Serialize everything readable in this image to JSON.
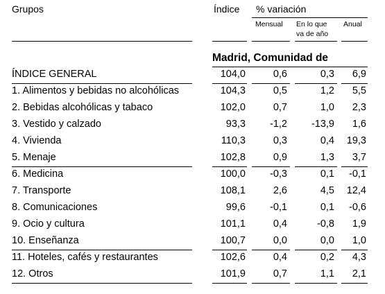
{
  "header": {
    "groups_label": "Grupos",
    "index_label": "Índice",
    "variation_label": "% variación",
    "monthly_label": "Mensual",
    "ytd_label_line1": "En lo que",
    "ytd_label_line2": "va de año",
    "annual_label": "Anual"
  },
  "region": "Madrid, Comunidad de",
  "rows": [
    {
      "label": "ÍNDICE GENERAL",
      "index": "104,0",
      "monthly": "0,6",
      "ytd": "0,3",
      "annual": "6,9"
    },
    {
      "label": "1. Alimentos y bebidas no alcohólicas",
      "index": "104,3",
      "monthly": "0,5",
      "ytd": "1,2",
      "annual": "5,5"
    },
    {
      "label": "2. Bebidas alcohólicas y tabaco",
      "index": "102,0",
      "monthly": "0,7",
      "ytd": "1,0",
      "annual": "2,3"
    },
    {
      "label": "3. Vestido y calzado",
      "index": "93,3",
      "monthly": "-1,2",
      "ytd": "-13,9",
      "annual": "1,6"
    },
    {
      "label": "4. Vivienda",
      "index": "110,3",
      "monthly": "0,3",
      "ytd": "0,4",
      "annual": "19,3"
    },
    {
      "label": "5. Menaje",
      "index": "102,8",
      "monthly": "0,9",
      "ytd": "1,3",
      "annual": "3,7"
    },
    {
      "label": "6. Medicina",
      "index": "100,0",
      "monthly": "-0,3",
      "ytd": "0,1",
      "annual": "-0,1"
    },
    {
      "label": "7. Transporte",
      "index": "108,1",
      "monthly": "2,6",
      "ytd": "4,5",
      "annual": "12,4"
    },
    {
      "label": "8. Comunicaciones",
      "index": "99,6",
      "monthly": "-0,1",
      "ytd": "0,1",
      "annual": "-0,6"
    },
    {
      "label": "9. Ocio y cultura",
      "index": "101,1",
      "monthly": "0,4",
      "ytd": "-0,8",
      "annual": "1,9"
    },
    {
      "label": "10. Enseñanza",
      "index": "100,7",
      "monthly": "0,0",
      "ytd": "0,0",
      "annual": "1,0"
    },
    {
      "label": "11. Hoteles, cafés y restaurantes",
      "index": "102,6",
      "monthly": "0,4",
      "ytd": "0,2",
      "annual": "4,3"
    },
    {
      "label": "12. Otros",
      "index": "101,9",
      "monthly": "0,7",
      "ytd": "1,1",
      "annual": "2,1"
    }
  ]
}
